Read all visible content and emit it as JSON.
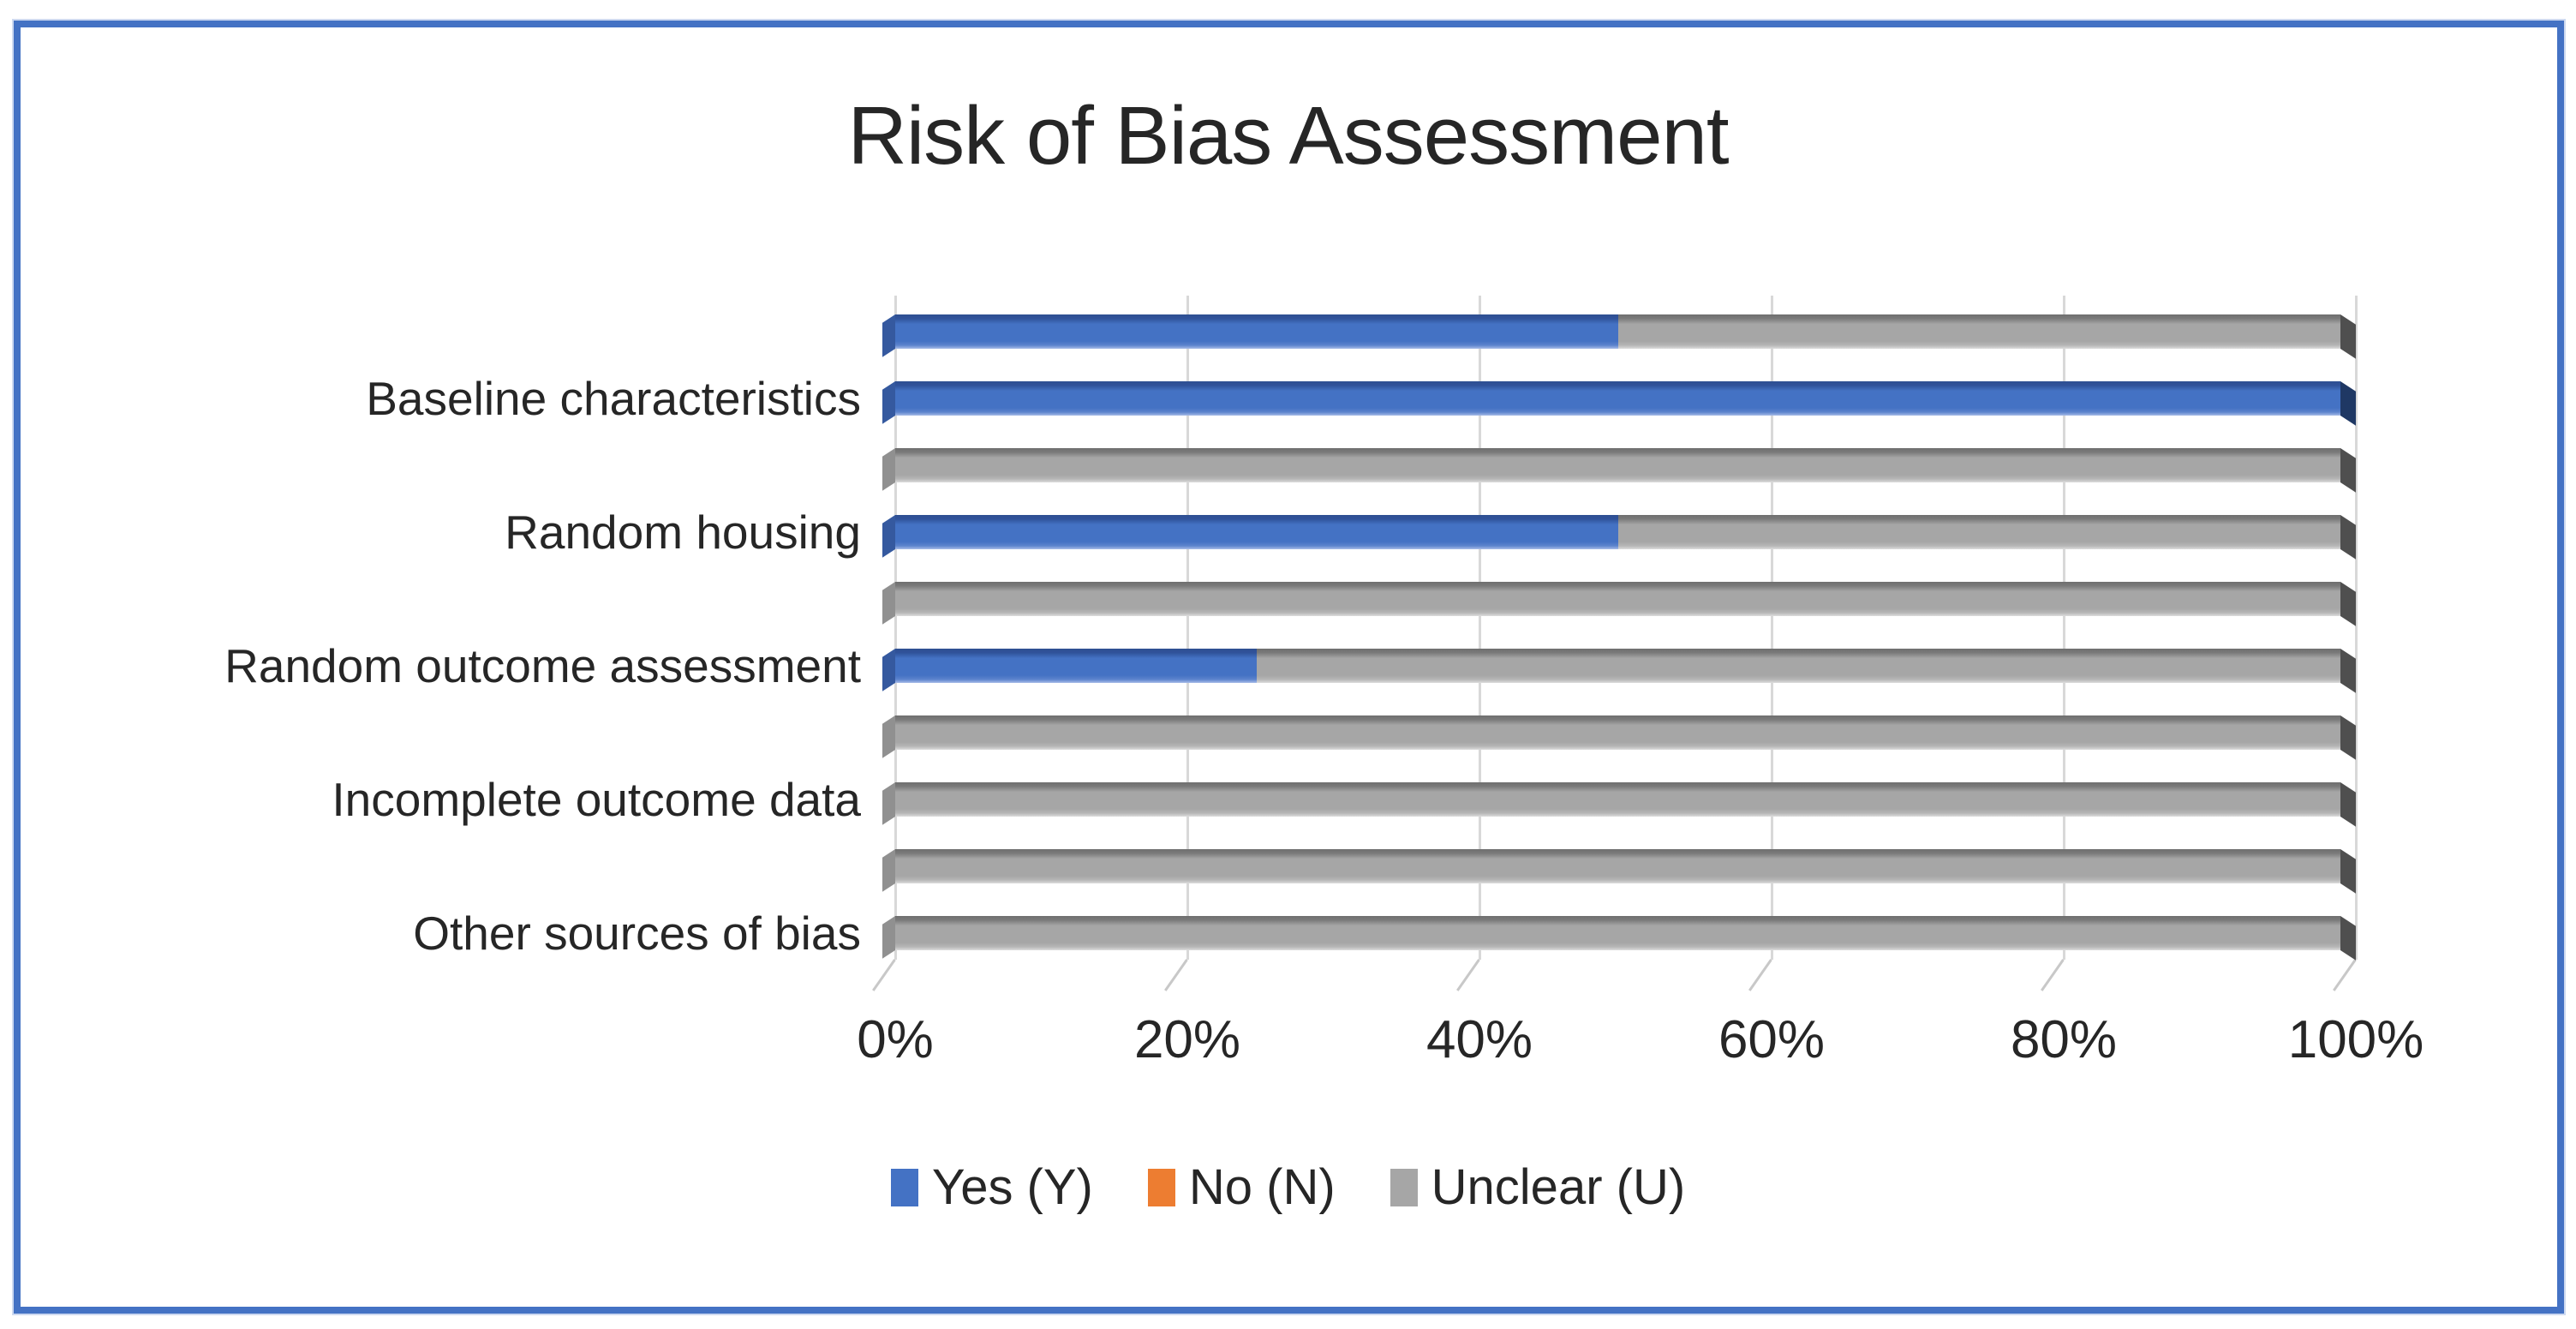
{
  "window": {
    "frame_color": "#4472C4",
    "background": "#ffffff"
  },
  "title": "Risk of Bias Assessment",
  "chart_data": {
    "type": "bar",
    "orientation": "horizontal",
    "stacked": true,
    "title": "Risk of Bias Assessment",
    "categories": [
      "",
      "Baseline characteristics",
      "",
      "Random housing",
      "",
      "Random outcome assessment",
      "",
      "Incomplete outcome data",
      "",
      "Other sources of bias"
    ],
    "series": [
      {
        "name": "Yes (Y)",
        "color": "#4472C4",
        "values": [
          50,
          100,
          0,
          50,
          0,
          25,
          0,
          0,
          0,
          0
        ]
      },
      {
        "name": "No (N)",
        "color": "#ED7D31",
        "values": [
          0,
          0,
          0,
          0,
          0,
          0,
          0,
          0,
          0,
          0
        ]
      },
      {
        "name": "Unclear (U)",
        "color": "#A6A6A6",
        "values": [
          50,
          0,
          100,
          50,
          100,
          75,
          100,
          100,
          100,
          100
        ]
      }
    ],
    "x_axis": {
      "ticks": [
        "0%",
        "20%",
        "40%",
        "60%",
        "80%",
        "100%"
      ],
      "range": [
        0,
        100
      ],
      "unit": "percent",
      "grid": true
    },
    "legend": {
      "position": "bottom",
      "entries": [
        "Yes (Y)",
        "No (N)",
        "Unclear (U)"
      ]
    }
  },
  "legend": {
    "items": [
      {
        "label": "Yes (Y)",
        "color": "#4472C4"
      },
      {
        "label": "No (N)",
        "color": "#ED7D31"
      },
      {
        "label": "Unclear (U)",
        "color": "#A6A6A6"
      }
    ]
  }
}
